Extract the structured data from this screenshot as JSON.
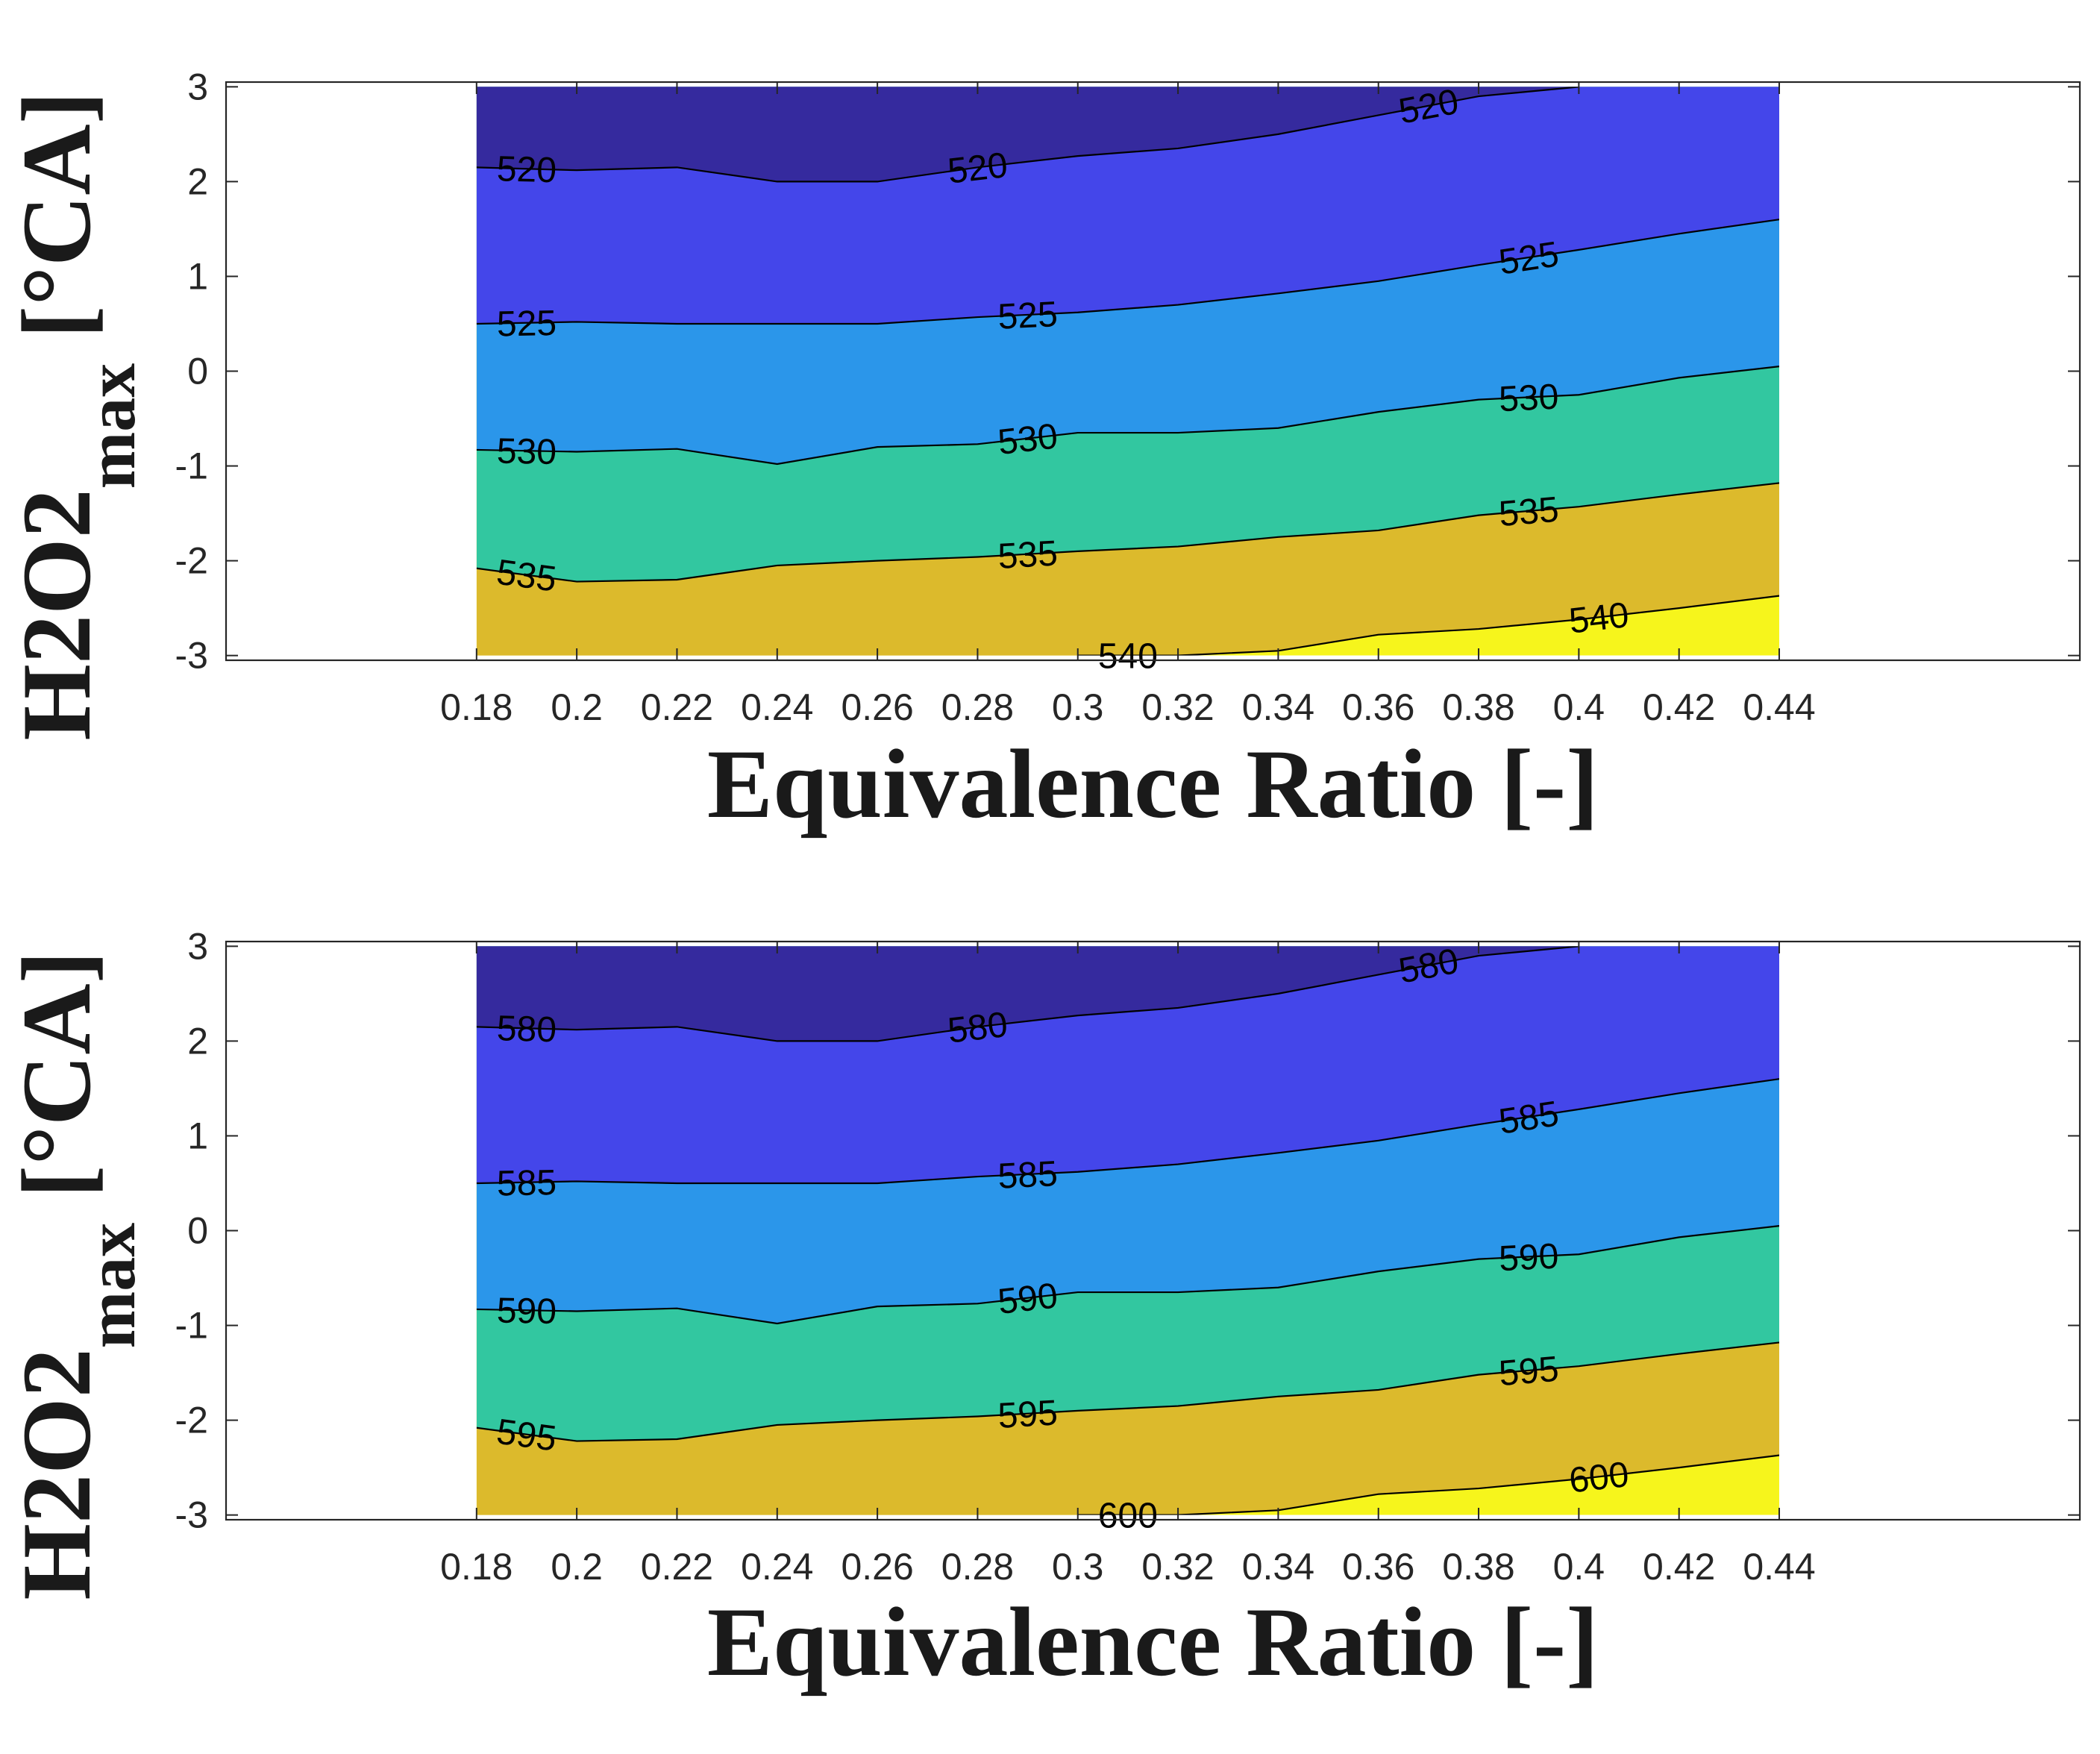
{
  "chart_data": [
    {
      "type": "contour",
      "xlabel": "Equivalence Ratio [-]",
      "ylabel": {
        "main": "H2O2",
        "sub": "max",
        "unit": " [°CA]"
      },
      "xlim": [
        0.13,
        0.5
      ],
      "ylim": [
        -3.05,
        3.05
      ],
      "x_ticks": [
        "0.18",
        "0.2",
        "0.22",
        "0.24",
        "0.26",
        "0.28",
        "0.3",
        "0.32",
        "0.34",
        "0.36",
        "0.38",
        "0.4",
        "0.42",
        "0.44"
      ],
      "y_ticks": [
        "3",
        "2",
        "1",
        "0",
        "-1",
        "-2",
        "-3"
      ],
      "region_x": [
        0.18,
        0.44
      ],
      "region_y": [
        -3,
        3
      ],
      "band_colors": [
        "#352a9e",
        "#4446ea",
        "#2b96ea",
        "#32c7a0",
        "#dcba2c",
        "#f6f51c"
      ],
      "contours": [
        {
          "level": 520,
          "x": [
            0.18,
            0.2,
            0.22,
            0.24,
            0.26,
            0.28,
            0.3,
            0.32,
            0.34,
            0.36,
            0.38,
            0.4
          ],
          "y": [
            2.15,
            2.12,
            2.15,
            2.0,
            2.0,
            2.15,
            2.27,
            2.35,
            2.5,
            2.7,
            2.9,
            3.0
          ]
        },
        {
          "level": 525,
          "x": [
            0.18,
            0.2,
            0.22,
            0.24,
            0.26,
            0.28,
            0.3,
            0.32,
            0.34,
            0.36,
            0.38,
            0.4,
            0.42,
            0.44
          ],
          "y": [
            0.5,
            0.52,
            0.5,
            0.5,
            0.5,
            0.57,
            0.62,
            0.7,
            0.82,
            0.95,
            1.12,
            1.28,
            1.45,
            1.6
          ]
        },
        {
          "level": 530,
          "x": [
            0.18,
            0.2,
            0.22,
            0.24,
            0.26,
            0.28,
            0.3,
            0.32,
            0.34,
            0.36,
            0.38,
            0.4,
            0.42,
            0.44
          ],
          "y": [
            -0.83,
            -0.85,
            -0.82,
            -0.98,
            -0.8,
            -0.77,
            -0.65,
            -0.65,
            -0.6,
            -0.43,
            -0.3,
            -0.25,
            -0.07,
            0.05
          ]
        },
        {
          "level": 535,
          "x": [
            0.18,
            0.2,
            0.22,
            0.24,
            0.26,
            0.28,
            0.3,
            0.32,
            0.34,
            0.36,
            0.38,
            0.4,
            0.42,
            0.44
          ],
          "y": [
            -2.08,
            -2.22,
            -2.2,
            -2.05,
            -2.0,
            -1.96,
            -1.9,
            -1.85,
            -1.75,
            -1.68,
            -1.52,
            -1.43,
            -1.3,
            -1.18
          ]
        },
        {
          "level": 540,
          "x": [
            0.3,
            0.32,
            0.34,
            0.36,
            0.38,
            0.4,
            0.42,
            0.44
          ],
          "y": [
            -3.0,
            -3.0,
            -2.95,
            -2.78,
            -2.72,
            -2.62,
            -2.5,
            -2.37
          ]
        }
      ]
    },
    {
      "type": "contour",
      "xlabel": "Equivalence Ratio [-]",
      "ylabel": {
        "main": "H2O2",
        "sub": "max",
        "unit": " [°CA]"
      },
      "xlim": [
        0.13,
        0.5
      ],
      "ylim": [
        -3.05,
        3.05
      ],
      "x_ticks": [
        "0.18",
        "0.2",
        "0.22",
        "0.24",
        "0.26",
        "0.28",
        "0.3",
        "0.32",
        "0.34",
        "0.36",
        "0.38",
        "0.4",
        "0.42",
        "0.44"
      ],
      "y_ticks": [
        "3",
        "2",
        "1",
        "0",
        "-1",
        "-2",
        "-3"
      ],
      "region_x": [
        0.18,
        0.44
      ],
      "region_y": [
        -3,
        3
      ],
      "band_colors": [
        "#352a9e",
        "#4446ea",
        "#2b96ea",
        "#32c7a0",
        "#dcba2c",
        "#f6f51c"
      ],
      "contours": [
        {
          "level": 580,
          "x": [
            0.18,
            0.2,
            0.22,
            0.24,
            0.26,
            0.28,
            0.3,
            0.32,
            0.34,
            0.36,
            0.38,
            0.4
          ],
          "y": [
            2.15,
            2.12,
            2.15,
            2.0,
            2.0,
            2.15,
            2.27,
            2.35,
            2.5,
            2.7,
            2.9,
            3.0
          ]
        },
        {
          "level": 585,
          "x": [
            0.18,
            0.2,
            0.22,
            0.24,
            0.26,
            0.28,
            0.3,
            0.32,
            0.34,
            0.36,
            0.38,
            0.4,
            0.42,
            0.44
          ],
          "y": [
            0.5,
            0.52,
            0.5,
            0.5,
            0.5,
            0.57,
            0.62,
            0.7,
            0.82,
            0.95,
            1.12,
            1.28,
            1.45,
            1.6
          ]
        },
        {
          "level": 590,
          "x": [
            0.18,
            0.2,
            0.22,
            0.24,
            0.26,
            0.28,
            0.3,
            0.32,
            0.34,
            0.36,
            0.38,
            0.4,
            0.42,
            0.44
          ],
          "y": [
            -0.83,
            -0.85,
            -0.82,
            -0.98,
            -0.8,
            -0.77,
            -0.65,
            -0.65,
            -0.6,
            -0.43,
            -0.3,
            -0.25,
            -0.07,
            0.05
          ]
        },
        {
          "level": 595,
          "x": [
            0.18,
            0.2,
            0.22,
            0.24,
            0.26,
            0.28,
            0.3,
            0.32,
            0.34,
            0.36,
            0.38,
            0.4,
            0.42,
            0.44
          ],
          "y": [
            -2.08,
            -2.22,
            -2.2,
            -2.05,
            -2.0,
            -1.96,
            -1.9,
            -1.85,
            -1.75,
            -1.68,
            -1.52,
            -1.43,
            -1.3,
            -1.18
          ]
        },
        {
          "level": 600,
          "x": [
            0.3,
            0.32,
            0.34,
            0.36,
            0.38,
            0.4,
            0.42,
            0.44
          ],
          "y": [
            -3.0,
            -3.0,
            -2.95,
            -2.78,
            -2.72,
            -2.62,
            -2.5,
            -2.37
          ]
        }
      ]
    }
  ]
}
